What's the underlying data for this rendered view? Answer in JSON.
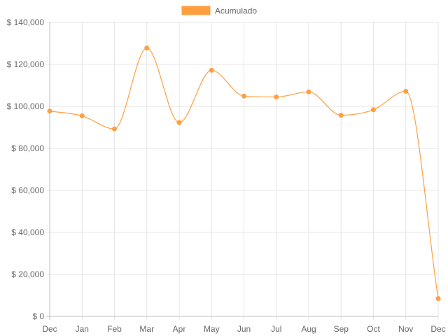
{
  "chart_data": {
    "type": "line",
    "series": [
      {
        "name": "Acumulado",
        "color": "#ff9f40",
        "values": [
          97800,
          95500,
          89300,
          127800,
          92300,
          117200,
          104900,
          104500,
          106900,
          95800,
          98400,
          107200,
          8500
        ]
      }
    ],
    "categories": [
      "Dec",
      "Jan",
      "Feb",
      "Mar",
      "Apr",
      "May",
      "Jun",
      "Jul",
      "Aug",
      "Sep",
      "Oct",
      "Nov",
      "Dec"
    ],
    "y_ticks": [
      "$ 0",
      "$ 20,000",
      "$ 40,000",
      "$ 60,000",
      "$ 80,000",
      "$ 100,000",
      "$ 120,000",
      "$ 140,000"
    ],
    "ylim": [
      0,
      140000
    ],
    "y_tick_step": 20000,
    "grid": true,
    "legend_position": "top",
    "curve": "smooth"
  }
}
